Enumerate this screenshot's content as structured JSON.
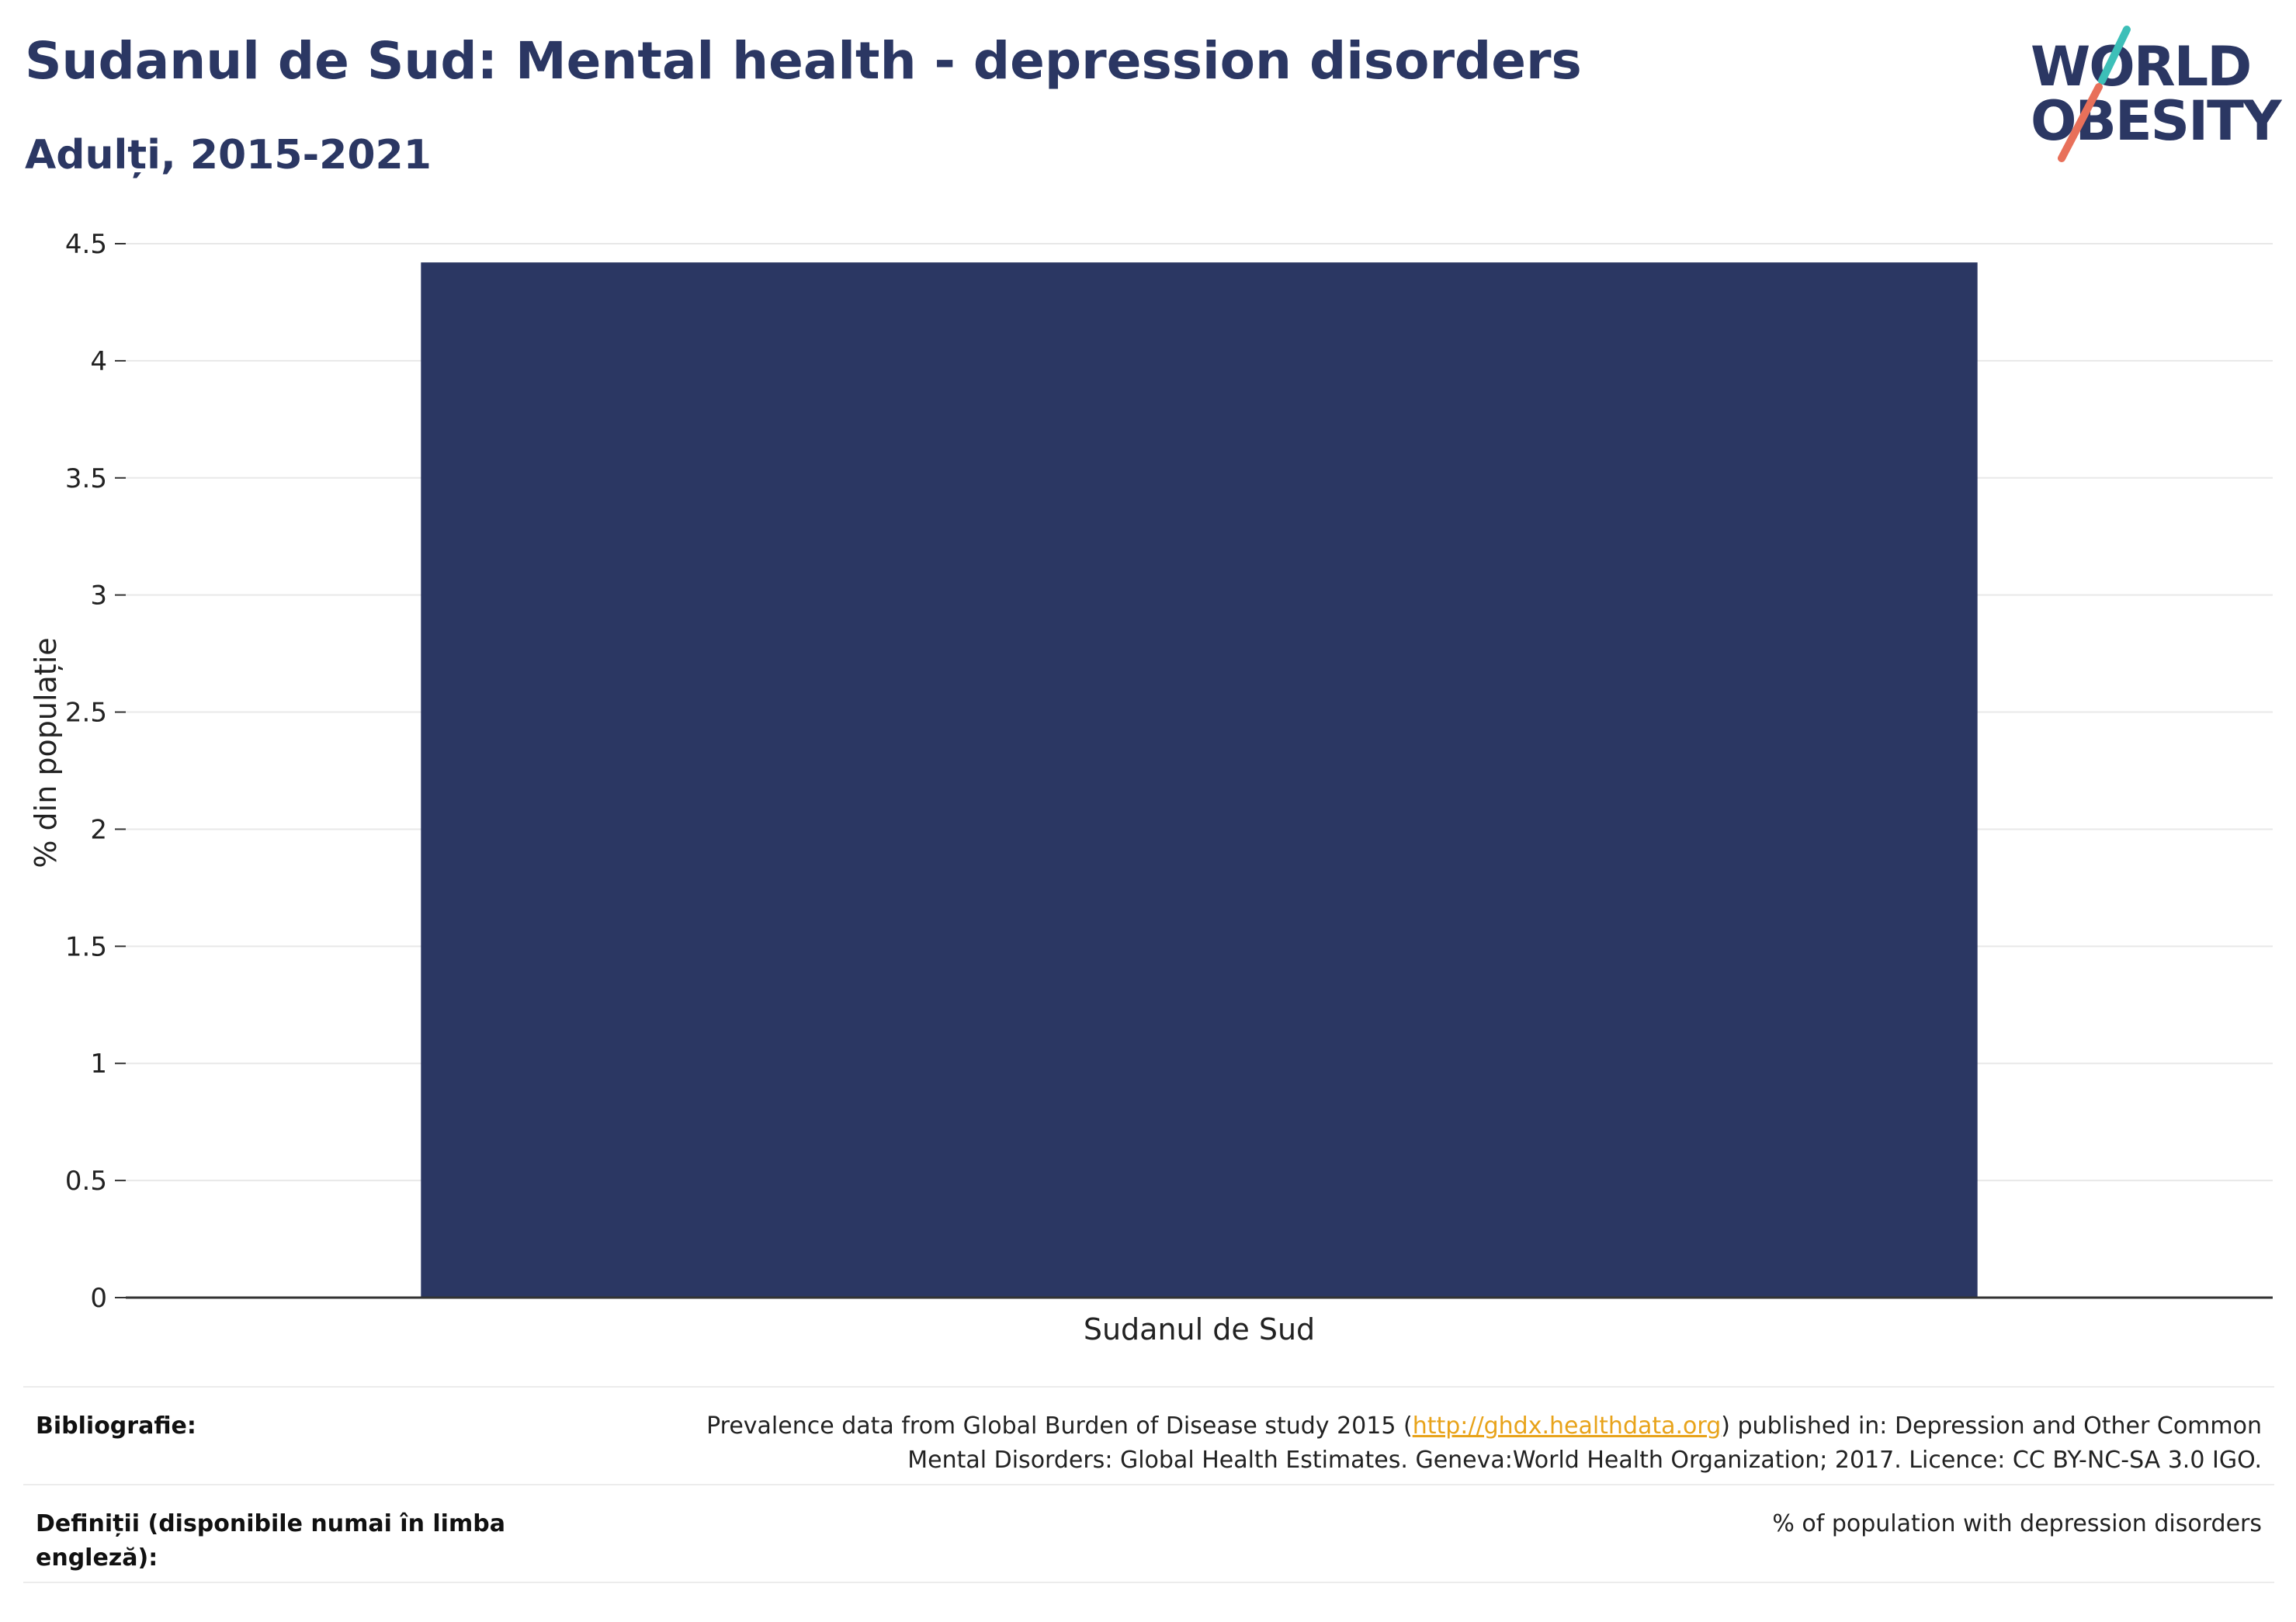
{
  "header": {
    "title": "Sudanul de Sud: Mental health - depression disorders",
    "subtitle": "Adulți, 2015-2021"
  },
  "logo": {
    "line1": "WORLD",
    "line2": "OBESITY",
    "colors": {
      "text": "#2b3763",
      "slash_top": "#3dbfb8",
      "slash_bottom": "#e8705a"
    }
  },
  "chart_data": {
    "type": "bar",
    "categories": [
      "Sudanul de Sud"
    ],
    "values": [
      4.42
    ],
    "ylabel": "% din populație",
    "xlabel": "",
    "ylim": [
      0,
      4.5
    ],
    "yticks": [
      "0",
      "0.5",
      "1",
      "1.5",
      "2",
      "2.5",
      "3",
      "3.5",
      "4",
      "4.5"
    ],
    "bar_color": "#2b3763",
    "grid": true
  },
  "footer": {
    "bibliography_label": "Bibliografie:",
    "bibliography_pre": "Prevalence data from Global Burden of Disease study 2015 (",
    "bibliography_link": "http://ghdx.healthdata.org",
    "bibliography_post": ") published in: Depression and Other Common",
    "bibliography_line2": "Mental Disorders: Global Health Estimates. Geneva:World Health Organization; 2017. Licence: CC BY-NC-SA 3.0 IGO.",
    "definitions_label": "Definiții (disponibile numai în limba engleză):",
    "definitions_text": "% of population with depression disorders"
  }
}
